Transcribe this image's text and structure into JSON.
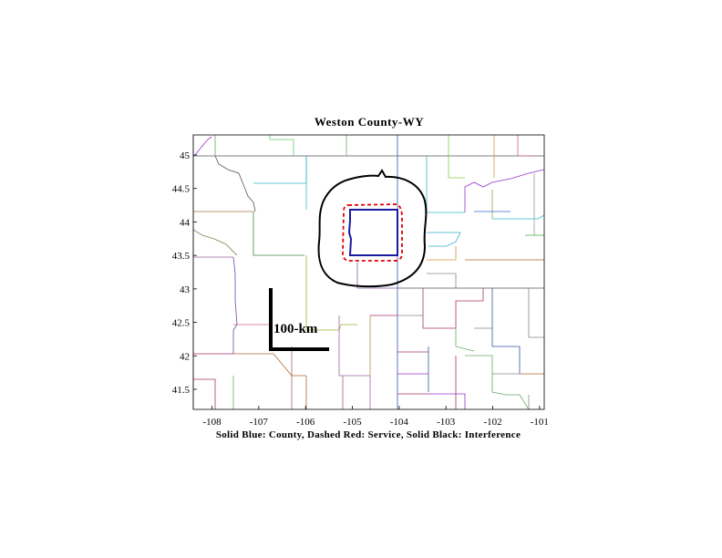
{
  "map": {
    "title": "Weston County-WY",
    "caption": "Solid Blue: County, Dashed Red: Service, Solid Black: Interference",
    "scale_label": "100-km",
    "x_ticks": [
      "-108",
      "-107",
      "-106",
      "-105",
      "-104",
      "-103",
      "-102",
      "-101"
    ],
    "y_ticks": [
      "45",
      "44.5",
      "44",
      "43.5",
      "43",
      "42.5",
      "42",
      "41.5"
    ],
    "lon_range": [
      -108.4,
      -100.9
    ],
    "lat_range": [
      41.2,
      45.3
    ],
    "colors": {
      "county": "#1a1aa0",
      "service": "#e00000",
      "interference": "#000000"
    },
    "layers": [
      "county-boundaries",
      "county-outline",
      "service-contour",
      "interference-contour",
      "scale-bar"
    ]
  }
}
